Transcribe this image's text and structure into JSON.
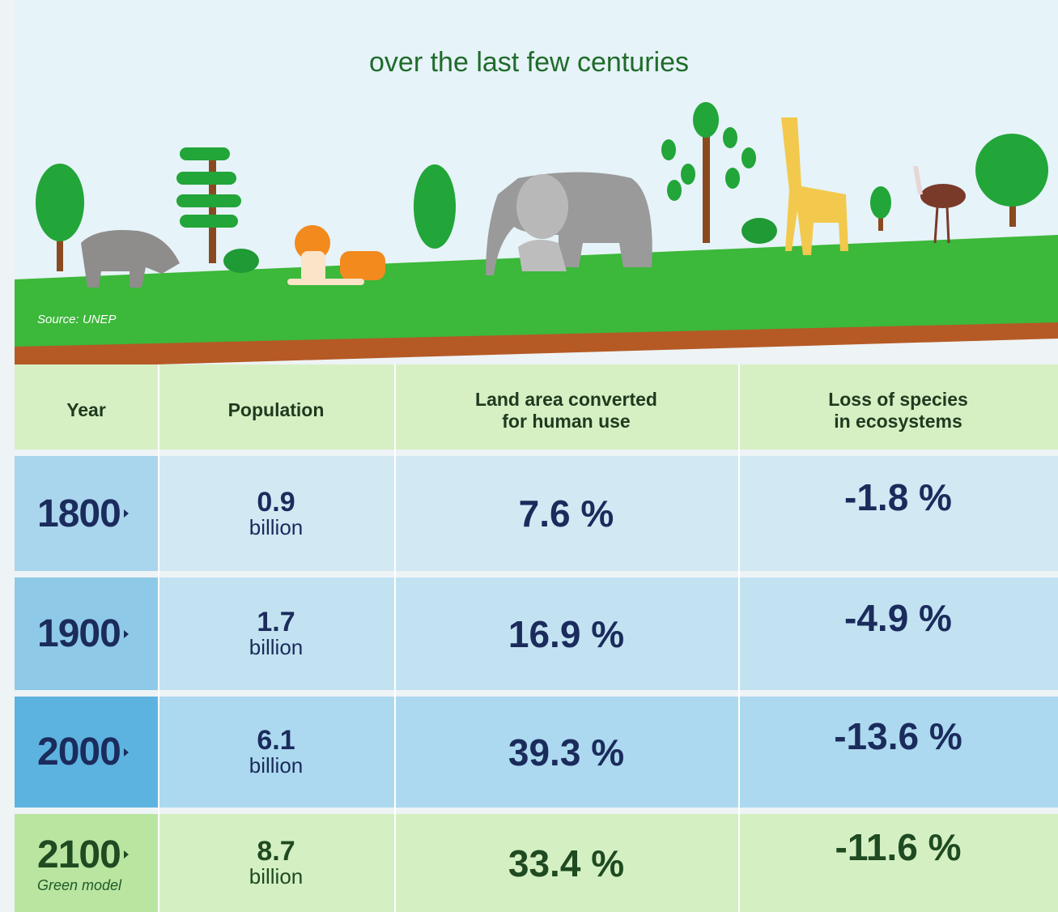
{
  "header": {
    "subtitle": "over the last few centuries",
    "source": "Source: UNEP"
  },
  "table": {
    "columns": [
      "Year",
      "Population",
      "Land area converted\nfor human use",
      "Loss of species\nin ecosystems"
    ],
    "rows": [
      {
        "year": "1800",
        "population": "0.9",
        "unit": "billion",
        "land": "7.6 %",
        "loss": "-1.8 %"
      },
      {
        "year": "1900",
        "population": "1.7",
        "unit": "billion",
        "land": "16.9 %",
        "loss": "-4.9 %"
      },
      {
        "year": "2000",
        "population": "6.1",
        "unit": "billion",
        "land": "39.3 %",
        "loss": "-13.6 %"
      },
      {
        "year": "2100",
        "note": "Green model",
        "population": "8.7",
        "unit": "billion",
        "land": "33.4 %",
        "loss": "-11.6 %"
      }
    ]
  }
}
